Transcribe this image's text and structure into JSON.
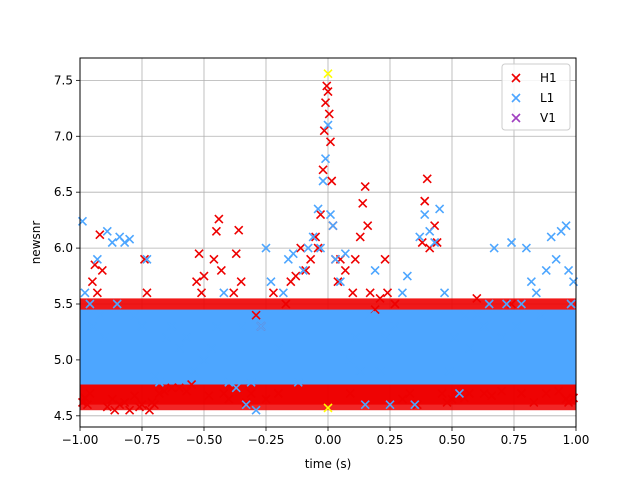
{
  "chart_data": {
    "type": "scatter",
    "title": "",
    "xlabel": "time (s)",
    "ylabel": "newsnr",
    "xlim": [
      -1.0,
      1.0
    ],
    "ylim": [
      4.4,
      7.7
    ],
    "grid": true,
    "legend_position": "top-right",
    "xticks": [
      -1.0,
      -0.75,
      -0.5,
      -0.25,
      0.0,
      0.25,
      0.5,
      0.75,
      1.0
    ],
    "xtick_labels": [
      "−1.00",
      "−0.75",
      "−0.50",
      "−0.25",
      "0.00",
      "0.25",
      "0.50",
      "0.75",
      "1.00"
    ],
    "yticks": [
      4.5,
      5.0,
      5.5,
      6.0,
      6.5,
      7.0,
      7.5
    ],
    "ytick_labels": [
      "4.5",
      "5.0",
      "5.5",
      "6.0",
      "6.5",
      "7.0",
      "7.5"
    ],
    "marker": "x",
    "series": [
      {
        "name": "H1",
        "color": "#ee0000",
        "points": [
          [
            -0.99,
            4.62
          ],
          [
            -0.98,
            4.66
          ],
          [
            -0.97,
            4.6
          ],
          [
            -0.96,
            4.7
          ],
          [
            -0.95,
            5.7
          ],
          [
            -0.94,
            5.85
          ],
          [
            -0.93,
            5.6
          ],
          [
            -0.92,
            6.12
          ],
          [
            -0.91,
            5.8
          ],
          [
            -0.89,
            4.58
          ],
          [
            -0.87,
            4.65
          ],
          [
            -0.86,
            4.55
          ],
          [
            -0.84,
            4.6
          ],
          [
            -0.82,
            4.62
          ],
          [
            -0.8,
            4.55
          ],
          [
            -0.78,
            4.68
          ],
          [
            -0.76,
            4.58
          ],
          [
            -0.75,
            4.6
          ],
          [
            -0.74,
            5.9
          ],
          [
            -0.73,
            5.6
          ],
          [
            -0.72,
            4.55
          ],
          [
            -0.71,
            4.62
          ],
          [
            -0.7,
            4.6
          ],
          [
            -0.68,
            4.7
          ],
          [
            -0.66,
            4.72
          ],
          [
            -0.63,
            4.75
          ],
          [
            -0.6,
            4.75
          ],
          [
            -0.57,
            4.72
          ],
          [
            -0.55,
            4.78
          ],
          [
            -0.53,
            5.7
          ],
          [
            -0.52,
            5.95
          ],
          [
            -0.51,
            5.6
          ],
          [
            -0.5,
            5.75
          ],
          [
            -0.48,
            4.68
          ],
          [
            -0.46,
            5.9
          ],
          [
            -0.45,
            6.15
          ],
          [
            -0.44,
            6.26
          ],
          [
            -0.43,
            5.8
          ],
          [
            -0.42,
            4.7
          ],
          [
            -0.4,
            4.65
          ],
          [
            -0.38,
            5.6
          ],
          [
            -0.37,
            5.95
          ],
          [
            -0.36,
            6.16
          ],
          [
            -0.35,
            5.7
          ],
          [
            -0.33,
            4.62
          ],
          [
            -0.31,
            4.7
          ],
          [
            -0.29,
            5.4
          ],
          [
            -0.27,
            5.3
          ],
          [
            -0.25,
            4.65
          ],
          [
            -0.22,
            5.6
          ],
          [
            -0.2,
            4.7
          ],
          [
            -0.17,
            5.5
          ],
          [
            -0.15,
            5.7
          ],
          [
            -0.13,
            5.75
          ],
          [
            -0.11,
            6.0
          ],
          [
            -0.09,
            5.8
          ],
          [
            -0.07,
            5.9
          ],
          [
            -0.05,
            6.1
          ],
          [
            -0.04,
            6.0
          ],
          [
            -0.03,
            6.3
          ],
          [
            -0.02,
            6.7
          ],
          [
            -0.015,
            7.05
          ],
          [
            -0.01,
            7.3
          ],
          [
            -0.005,
            7.45
          ],
          [
            0.0,
            7.4
          ],
          [
            0.005,
            7.2
          ],
          [
            0.01,
            6.95
          ],
          [
            0.015,
            6.6
          ],
          [
            0.02,
            6.2
          ],
          [
            0.03,
            5.9
          ],
          [
            0.04,
            5.7
          ],
          [
            0.05,
            5.9
          ],
          [
            0.07,
            5.8
          ],
          [
            0.09,
            4.7
          ],
          [
            0.1,
            5.6
          ],
          [
            0.11,
            5.9
          ],
          [
            0.13,
            6.1
          ],
          [
            0.14,
            6.4
          ],
          [
            0.15,
            6.55
          ],
          [
            0.16,
            6.2
          ],
          [
            0.17,
            5.6
          ],
          [
            0.19,
            5.45
          ],
          [
            0.21,
            5.55
          ],
          [
            0.23,
            5.9
          ],
          [
            0.24,
            5.6
          ],
          [
            0.27,
            5.5
          ],
          [
            0.3,
            4.65
          ],
          [
            0.33,
            4.7
          ],
          [
            0.36,
            4.6
          ],
          [
            0.38,
            6.05
          ],
          [
            0.39,
            6.42
          ],
          [
            0.4,
            6.62
          ],
          [
            0.41,
            6.0
          ],
          [
            0.43,
            6.2
          ],
          [
            0.44,
            6.05
          ],
          [
            0.46,
            4.7
          ],
          [
            0.48,
            4.62
          ],
          [
            0.5,
            4.65
          ],
          [
            0.52,
            4.68
          ],
          [
            0.55,
            4.66
          ],
          [
            0.57,
            4.7
          ],
          [
            0.6,
            5.55
          ],
          [
            0.63,
            4.7
          ],
          [
            0.66,
            4.68
          ],
          [
            0.7,
            4.72
          ],
          [
            0.74,
            5.5
          ],
          [
            0.78,
            4.7
          ],
          [
            0.83,
            4.62
          ],
          [
            0.88,
            4.7
          ],
          [
            0.93,
            4.72
          ],
          [
            0.96,
            4.65
          ],
          [
            0.97,
            4.62
          ],
          [
            0.99,
            4.66
          ]
        ]
      },
      {
        "name": "L1",
        "color": "#4da6ff",
        "points": [
          [
            -0.99,
            6.24
          ],
          [
            -0.98,
            5.6
          ],
          [
            -0.96,
            5.5
          ],
          [
            -0.95,
            5.3
          ],
          [
            -0.93,
            5.9
          ],
          [
            -0.92,
            5.4
          ],
          [
            -0.9,
            5.2
          ],
          [
            -0.89,
            6.15
          ],
          [
            -0.87,
            6.05
          ],
          [
            -0.85,
            5.5
          ],
          [
            -0.84,
            6.1
          ],
          [
            -0.82,
            6.05
          ],
          [
            -0.8,
            6.08
          ],
          [
            -0.78,
            5.4
          ],
          [
            -0.75,
            5.3
          ],
          [
            -0.73,
            5.9
          ],
          [
            -0.7,
            4.85
          ],
          [
            -0.68,
            4.8
          ],
          [
            -0.65,
            5.2
          ],
          [
            -0.63,
            5.3
          ],
          [
            -0.6,
            5.1
          ],
          [
            -0.57,
            5.2
          ],
          [
            -0.54,
            4.9
          ],
          [
            -0.5,
            5.0
          ],
          [
            -0.47,
            5.1
          ],
          [
            -0.45,
            5.3
          ],
          [
            -0.42,
            5.6
          ],
          [
            -0.4,
            4.8
          ],
          [
            -0.37,
            4.75
          ],
          [
            -0.35,
            5.3
          ],
          [
            -0.33,
            4.6
          ],
          [
            -0.31,
            4.8
          ],
          [
            -0.29,
            4.55
          ],
          [
            -0.27,
            5.3
          ],
          [
            -0.25,
            6.0
          ],
          [
            -0.23,
            5.7
          ],
          [
            -0.2,
            5.1
          ],
          [
            -0.18,
            5.6
          ],
          [
            -0.16,
            5.9
          ],
          [
            -0.14,
            5.95
          ],
          [
            -0.12,
            4.8
          ],
          [
            -0.1,
            5.8
          ],
          [
            -0.08,
            6.0
          ],
          [
            -0.06,
            6.1
          ],
          [
            -0.04,
            6.35
          ],
          [
            -0.03,
            6.0
          ],
          [
            -0.02,
            6.6
          ],
          [
            -0.01,
            6.8
          ],
          [
            0.0,
            7.1
          ],
          [
            0.01,
            6.3
          ],
          [
            0.02,
            6.2
          ],
          [
            0.03,
            5.9
          ],
          [
            0.05,
            5.7
          ],
          [
            0.07,
            5.95
          ],
          [
            0.09,
            5.0
          ],
          [
            0.11,
            5.2
          ],
          [
            0.13,
            4.9
          ],
          [
            0.15,
            4.6
          ],
          [
            0.17,
            5.4
          ],
          [
            0.19,
            5.8
          ],
          [
            0.21,
            4.9
          ],
          [
            0.23,
            5.2
          ],
          [
            0.25,
            4.6
          ],
          [
            0.27,
            5.3
          ],
          [
            0.3,
            5.6
          ],
          [
            0.32,
            5.75
          ],
          [
            0.35,
            4.6
          ],
          [
            0.37,
            6.1
          ],
          [
            0.39,
            6.3
          ],
          [
            0.41,
            6.15
          ],
          [
            0.43,
            6.05
          ],
          [
            0.45,
            6.35
          ],
          [
            0.47,
            5.6
          ],
          [
            0.49,
            4.9
          ],
          [
            0.51,
            5.2
          ],
          [
            0.53,
            4.7
          ],
          [
            0.55,
            5.4
          ],
          [
            0.57,
            5.1
          ],
          [
            0.6,
            5.4
          ],
          [
            0.63,
            5.3
          ],
          [
            0.65,
            5.5
          ],
          [
            0.67,
            6.0
          ],
          [
            0.7,
            5.2
          ],
          [
            0.72,
            5.5
          ],
          [
            0.74,
            6.05
          ],
          [
            0.76,
            5.3
          ],
          [
            0.78,
            5.5
          ],
          [
            0.8,
            6.0
          ],
          [
            0.82,
            5.7
          ],
          [
            0.84,
            5.6
          ],
          [
            0.86,
            5.4
          ],
          [
            0.88,
            5.8
          ],
          [
            0.9,
            6.1
          ],
          [
            0.92,
            5.9
          ],
          [
            0.94,
            6.15
          ],
          [
            0.96,
            6.2
          ],
          [
            0.97,
            5.8
          ],
          [
            0.98,
            5.5
          ],
          [
            0.99,
            5.7
          ]
        ]
      },
      {
        "name": "V1",
        "color": "#a040c0",
        "points": []
      }
    ],
    "highlighted_points": {
      "color": "#ffff00",
      "points": [
        [
          0.0,
          7.56
        ],
        [
          0.0,
          4.57
        ]
      ]
    }
  }
}
